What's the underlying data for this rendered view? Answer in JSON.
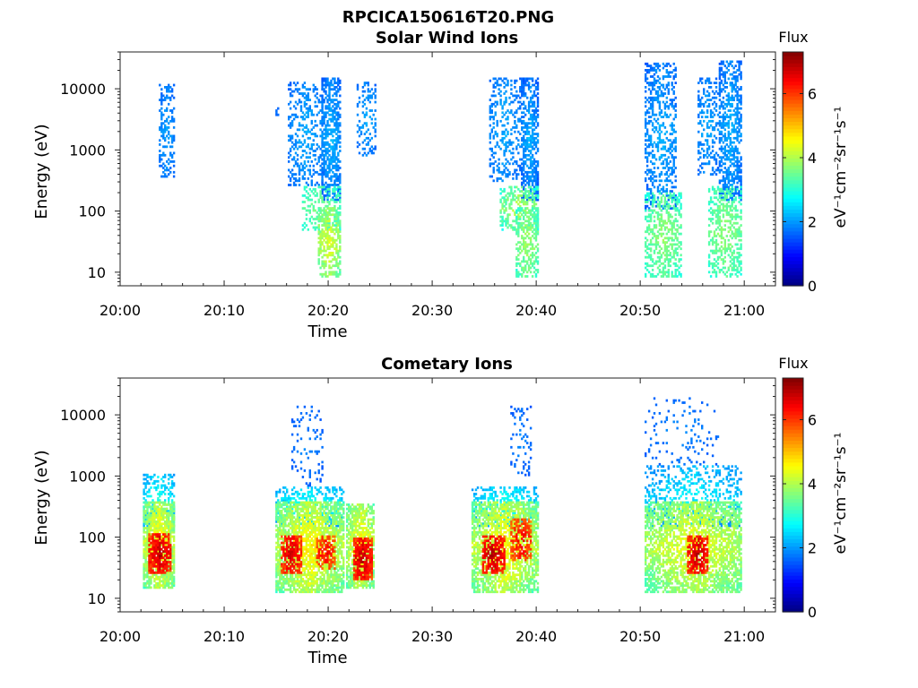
{
  "figure": {
    "filename": "RPCICA150616T20.PNG"
  },
  "chart_data": [
    {
      "type": "heatmap",
      "title": "Solar Wind Ions",
      "xlabel": "Time",
      "ylabel": "Energy (eV)",
      "x_ticks": [
        "20:00",
        "20:10",
        "20:20",
        "20:30",
        "20:40",
        "20:50",
        "21:00"
      ],
      "xlim_minutes_after_20_00": [
        0,
        63
      ],
      "y_scale": "log",
      "y_ticks": [
        10,
        100,
        1000,
        10000
      ],
      "y_tick_labels": [
        "10",
        "100",
        "1000",
        "10000"
      ],
      "ylim": [
        6,
        40000
      ],
      "colorbar": {
        "title": "Flux",
        "label": "eV⁻¹cm⁻²sr⁻¹s⁻¹",
        "ticks": [
          0,
          2,
          4,
          6
        ],
        "range": [
          0,
          7.3
        ],
        "colormap": "jet"
      },
      "clusters": [
        {
          "t": [
            3.8,
            5.2
          ],
          "e": [
            350,
            12000
          ],
          "flux": [
            1.5,
            2.2
          ],
          "density": 0.35
        },
        {
          "t": [
            15.0,
            15.3
          ],
          "e": [
            3500,
            5000
          ],
          "flux": [
            1.5,
            1.8
          ],
          "density": 0.5
        },
        {
          "t": [
            16.2,
            19.5
          ],
          "e": [
            250,
            13000
          ],
          "flux": [
            1.5,
            2.3
          ],
          "density": 0.3
        },
        {
          "t": [
            19.3,
            21.3
          ],
          "e": [
            150,
            15000
          ],
          "flux": [
            1.4,
            2.4
          ],
          "density": 0.6
        },
        {
          "t": [
            17.5,
            21.2
          ],
          "e": [
            50,
            250
          ],
          "flux": [
            2.8,
            3.8
          ],
          "density": 0.35
        },
        {
          "t": [
            19.0,
            21.3
          ],
          "e": [
            8,
            120
          ],
          "flux": [
            3.0,
            4.6
          ],
          "density": 0.55
        },
        {
          "t": [
            22.8,
            24.6
          ],
          "e": [
            800,
            13000
          ],
          "flux": [
            1.5,
            2.3
          ],
          "density": 0.3
        },
        {
          "t": [
            35.5,
            38.5
          ],
          "e": [
            300,
            15000
          ],
          "flux": [
            1.5,
            2.3
          ],
          "density": 0.3
        },
        {
          "t": [
            38.5,
            40.3
          ],
          "e": [
            150,
            15000
          ],
          "flux": [
            1.3,
            2.4
          ],
          "density": 0.6
        },
        {
          "t": [
            36.5,
            40.2
          ],
          "e": [
            50,
            250
          ],
          "flux": [
            2.6,
            4.4
          ],
          "density": 0.4
        },
        {
          "t": [
            38.0,
            40.3
          ],
          "e": [
            8,
            120
          ],
          "flux": [
            2.8,
            4.2
          ],
          "density": 0.5
        },
        {
          "t": [
            50.5,
            53.5
          ],
          "e": [
            100,
            27000
          ],
          "flux": [
            1.4,
            2.4
          ],
          "density": 0.4
        },
        {
          "t": [
            50.5,
            54.0
          ],
          "e": [
            8,
            200
          ],
          "flux": [
            2.8,
            4.0
          ],
          "density": 0.45
        },
        {
          "t": [
            55.5,
            57.5
          ],
          "e": [
            400,
            15000
          ],
          "flux": [
            1.5,
            2.3
          ],
          "density": 0.3
        },
        {
          "t": [
            57.5,
            59.8
          ],
          "e": [
            150,
            30000
          ],
          "flux": [
            1.4,
            2.4
          ],
          "density": 0.55
        },
        {
          "t": [
            56.5,
            59.8
          ],
          "e": [
            8,
            250
          ],
          "flux": [
            2.8,
            4.0
          ],
          "density": 0.45
        }
      ]
    },
    {
      "type": "heatmap",
      "title": "Cometary Ions",
      "xlabel": "Time",
      "ylabel": "Energy (eV)",
      "x_ticks": [
        "20:00",
        "20:10",
        "20:20",
        "20:30",
        "20:40",
        "20:50",
        "21:00"
      ],
      "xlim_minutes_after_20_00": [
        0,
        63
      ],
      "y_scale": "log",
      "y_ticks": [
        10,
        100,
        1000,
        10000
      ],
      "y_tick_labels": [
        "10",
        "100",
        "1000",
        "10000"
      ],
      "ylim": [
        6,
        40000
      ],
      "colorbar": {
        "title": "Flux",
        "label": "eV⁻¹cm⁻²sr⁻¹s⁻¹",
        "ticks": [
          0,
          2,
          4,
          6
        ],
        "range": [
          0,
          7.3
        ],
        "colormap": "jet"
      },
      "clusters": [
        {
          "t": [
            2.2,
            5.3
          ],
          "e": [
            150,
            1100
          ],
          "flux": [
            1.8,
            3.2
          ],
          "density": 0.35
        },
        {
          "t": [
            2.2,
            5.3
          ],
          "e": [
            15,
            400
          ],
          "flux": [
            3.0,
            5.0
          ],
          "density": 0.8
        },
        {
          "t": [
            2.8,
            4.9
          ],
          "e": [
            25,
            120
          ],
          "flux": [
            5.5,
            7.2
          ],
          "density": 0.75
        },
        {
          "t": [
            15.0,
            21.5
          ],
          "e": [
            150,
            700
          ],
          "flux": [
            1.8,
            3.2
          ],
          "density": 0.35
        },
        {
          "t": [
            15.0,
            21.5
          ],
          "e": [
            12,
            400
          ],
          "flux": [
            3.0,
            5.0
          ],
          "density": 0.75
        },
        {
          "t": [
            15.5,
            17.5
          ],
          "e": [
            25,
            110
          ],
          "flux": [
            5.5,
            7.0
          ],
          "density": 0.7
        },
        {
          "t": [
            18.8,
            20.8
          ],
          "e": [
            30,
            110
          ],
          "flux": [
            5.2,
            6.8
          ],
          "density": 0.55
        },
        {
          "t": [
            21.8,
            24.5
          ],
          "e": [
            15,
            350
          ],
          "flux": [
            3.0,
            5.0
          ],
          "density": 0.75
        },
        {
          "t": [
            22.5,
            24.2
          ],
          "e": [
            20,
            100
          ],
          "flux": [
            5.5,
            7.2
          ],
          "density": 0.75
        },
        {
          "t": [
            16.5,
            19.5
          ],
          "e": [
            700,
            14000
          ],
          "flux": [
            1.4,
            2.0
          ],
          "density": 0.12
        },
        {
          "t": [
            33.8,
            40.2
          ],
          "e": [
            150,
            700
          ],
          "flux": [
            1.8,
            3.2
          ],
          "density": 0.35
        },
        {
          "t": [
            33.8,
            40.2
          ],
          "e": [
            12,
            400
          ],
          "flux": [
            3.0,
            5.0
          ],
          "density": 0.7
        },
        {
          "t": [
            34.8,
            37.0
          ],
          "e": [
            25,
            110
          ],
          "flux": [
            5.5,
            7.2
          ],
          "density": 0.7
        },
        {
          "t": [
            37.6,
            39.6
          ],
          "e": [
            40,
            200
          ],
          "flux": [
            5.2,
            6.8
          ],
          "density": 0.55
        },
        {
          "t": [
            37.5,
            39.5
          ],
          "e": [
            1000,
            14000
          ],
          "flux": [
            1.4,
            2.0
          ],
          "density": 0.15
        },
        {
          "t": [
            50.5,
            59.8
          ],
          "e": [
            150,
            1500
          ],
          "flux": [
            1.6,
            3.0
          ],
          "density": 0.3
        },
        {
          "t": [
            50.5,
            59.8
          ],
          "e": [
            12,
            400
          ],
          "flux": [
            3.0,
            4.8
          ],
          "density": 0.65
        },
        {
          "t": [
            54.5,
            56.5
          ],
          "e": [
            25,
            110
          ],
          "flux": [
            5.5,
            7.2
          ],
          "density": 0.7
        },
        {
          "t": [
            50.5,
            57.5
          ],
          "e": [
            1500,
            20000
          ],
          "flux": [
            1.4,
            2.0
          ],
          "density": 0.07
        }
      ]
    }
  ]
}
